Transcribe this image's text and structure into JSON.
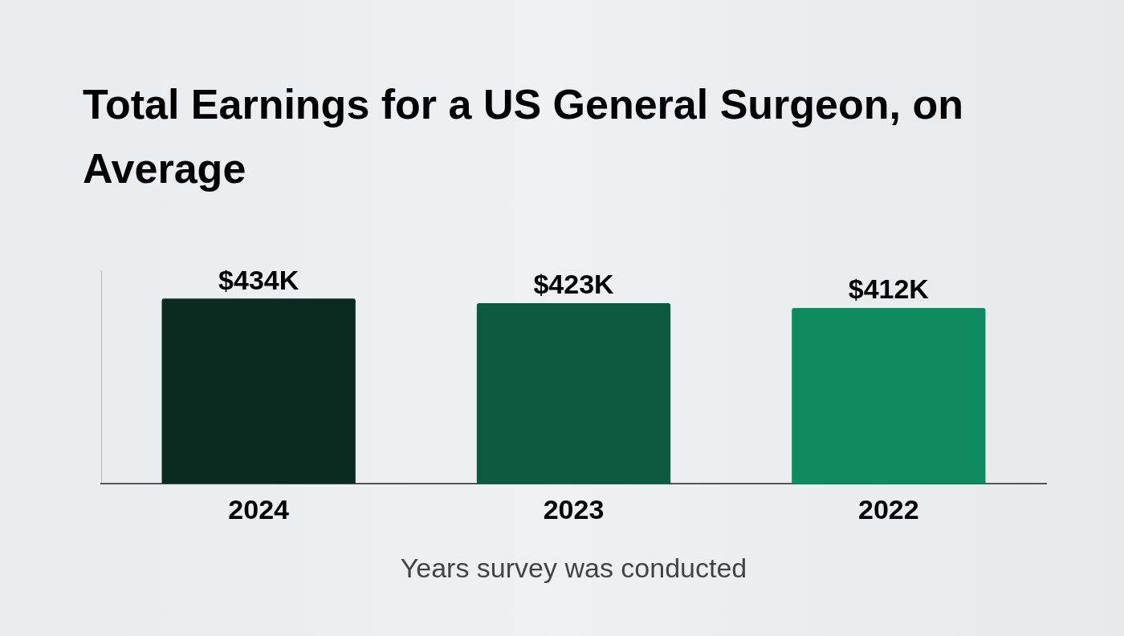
{
  "chart_data": {
    "type": "bar",
    "title": "Total Earnings for a US General Surgeon, on Average",
    "x_label": "Years survey was conducted",
    "categories": [
      "2024",
      "2023",
      "2022"
    ],
    "values": [
      434,
      423,
      412
    ],
    "value_labels": [
      "$434K",
      "$423K",
      "$412K"
    ],
    "colors": [
      "#0b2a20",
      "#0e5a41",
      "#108a5f"
    ],
    "ylim": [
      0,
      500
    ],
    "grid": false,
    "data_labels": true,
    "tick_labels": "x"
  }
}
